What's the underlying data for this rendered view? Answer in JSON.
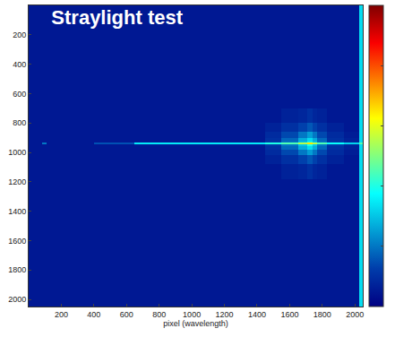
{
  "chart_data": {
    "type": "heatmap",
    "title": "Straylight test",
    "xlabel": "pixel (wavelength)",
    "x": [
      0,
      80,
      110,
      400,
      650,
      1450,
      1550,
      1650,
      1710,
      1740,
      1770,
      1830,
      1930,
      2025,
      2048
    ],
    "y": [
      0,
      700,
      800,
      860,
      900,
      925,
      935,
      945,
      955,
      980,
      1020,
      1080,
      1180,
      2048
    ],
    "z": [
      [
        0.05,
        0.05,
        0.05,
        0.05,
        0.05,
        0.05,
        0.05,
        0.05,
        0.05,
        0.05,
        0.05,
        0.05,
        0.05,
        0.33
      ],
      [
        0.05,
        0.05,
        0.05,
        0.05,
        0.05,
        0.05,
        0.07,
        0.08,
        0.1,
        0.08,
        0.07,
        0.05,
        0.05,
        0.33
      ],
      [
        0.05,
        0.05,
        0.05,
        0.05,
        0.05,
        0.07,
        0.1,
        0.13,
        0.16,
        0.13,
        0.1,
        0.07,
        0.05,
        0.33
      ],
      [
        0.05,
        0.05,
        0.05,
        0.05,
        0.05,
        0.09,
        0.14,
        0.2,
        0.25,
        0.2,
        0.14,
        0.09,
        0.06,
        0.33
      ],
      [
        0.05,
        0.05,
        0.05,
        0.05,
        0.05,
        0.1,
        0.18,
        0.27,
        0.33,
        0.27,
        0.18,
        0.1,
        0.07,
        0.33
      ],
      [
        0.05,
        0.05,
        0.05,
        0.05,
        0.06,
        0.12,
        0.2,
        0.3,
        0.4,
        0.3,
        0.2,
        0.12,
        0.08,
        0.33
      ],
      [
        0.05,
        0.2,
        0.05,
        0.15,
        0.35,
        0.4,
        0.45,
        0.55,
        0.65,
        0.55,
        0.45,
        0.38,
        0.32,
        0.45
      ],
      [
        0.05,
        0.05,
        0.05,
        0.05,
        0.06,
        0.12,
        0.2,
        0.3,
        0.4,
        0.3,
        0.2,
        0.12,
        0.08,
        0.33
      ],
      [
        0.05,
        0.05,
        0.05,
        0.05,
        0.05,
        0.1,
        0.18,
        0.27,
        0.33,
        0.27,
        0.18,
        0.1,
        0.07,
        0.33
      ],
      [
        0.05,
        0.05,
        0.05,
        0.05,
        0.05,
        0.09,
        0.14,
        0.2,
        0.25,
        0.2,
        0.14,
        0.09,
        0.06,
        0.33
      ],
      [
        0.05,
        0.05,
        0.05,
        0.05,
        0.05,
        0.07,
        0.1,
        0.13,
        0.16,
        0.13,
        0.1,
        0.07,
        0.05,
        0.33
      ],
      [
        0.05,
        0.05,
        0.05,
        0.05,
        0.05,
        0.05,
        0.07,
        0.08,
        0.1,
        0.08,
        0.07,
        0.05,
        0.05,
        0.33
      ],
      [
        0.05,
        0.05,
        0.05,
        0.05,
        0.05,
        0.05,
        0.05,
        0.05,
        0.05,
        0.05,
        0.05,
        0.05,
        0.05,
        0.33
      ]
    ],
    "xlim": [
      0,
      2048
    ],
    "ylim": [
      2048,
      0
    ],
    "xticks": [
      200,
      400,
      600,
      800,
      1000,
      1200,
      1400,
      1600,
      1800,
      2000
    ],
    "yticks": [
      200,
      400,
      600,
      800,
      1000,
      1200,
      1400,
      1600,
      1800,
      2000
    ],
    "zlim": [
      0,
      1
    ],
    "grid": false
  }
}
